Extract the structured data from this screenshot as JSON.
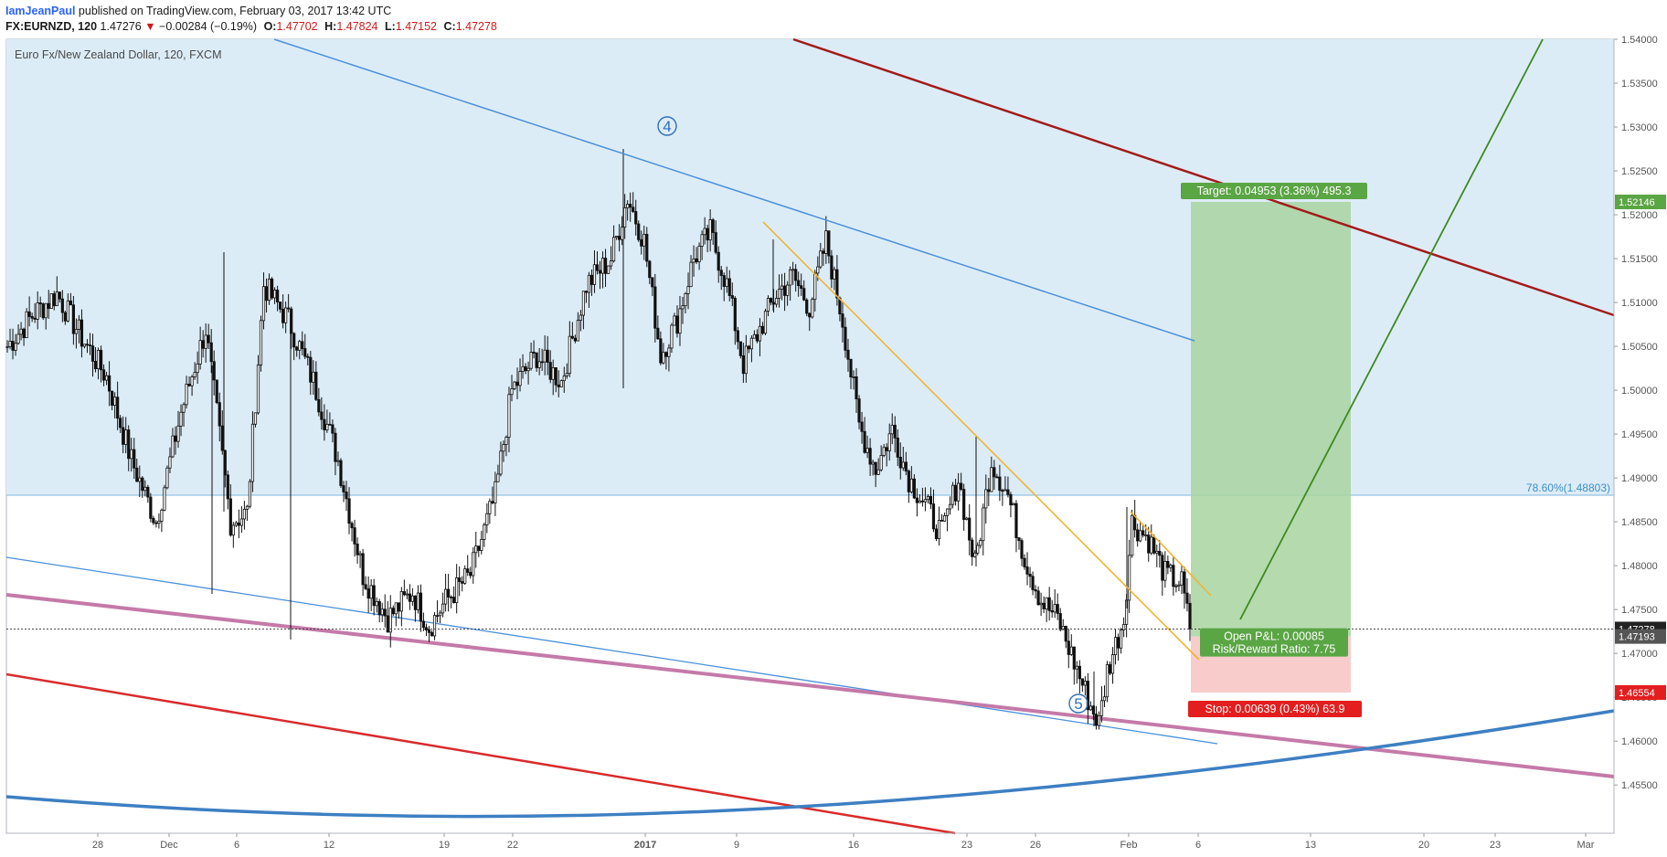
{
  "header": {
    "author": "IamJeanPaul",
    "published_text": " published on TradingView.com, February 03, 2017 13:42 UTC",
    "symbol": "FX:EURNZD, 120",
    "last": "1.47276",
    "change_arrow": "▼",
    "change": "−0.00284 (−0.19%)",
    "o_label": "O:",
    "o_value": "1.47702",
    "h_label": "H:",
    "h_value": "1.47824",
    "l_label": "L:",
    "l_value": "1.47152",
    "c_label": "C:",
    "c_value": "1.47278"
  },
  "chart_data": {
    "type": "candlestick",
    "title": "Euro Fx/New Zealand Dollar, 120, FXCM",
    "ylim": [
      1.4495,
      1.54
    ],
    "x_ticks": [
      "28",
      "Dec",
      "6",
      "12",
      "19",
      "22",
      "2017",
      "9",
      "16",
      "23",
      "26",
      "Feb",
      "6",
      "13",
      "20",
      "23",
      "Mar"
    ],
    "y_ticks": [
      "1.54000",
      "1.53500",
      "1.53000",
      "1.52500",
      "1.52000",
      "1.51500",
      "1.51000",
      "1.50500",
      "1.50000",
      "1.49500",
      "1.49000",
      "1.48500",
      "1.48000",
      "1.47500",
      "1.47000",
      "1.46500",
      "1.46000",
      "1.45500"
    ],
    "price_series": [
      [
        0,
        1.505
      ],
      [
        3,
        1.5085
      ],
      [
        6,
        1.511
      ],
      [
        9,
        1.506
      ],
      [
        12,
        1.5015
      ],
      [
        15,
        1.492
      ],
      [
        18,
        1.485
      ],
      [
        21,
        1.4975
      ],
      [
        24,
        1.507
      ],
      [
        27,
        1.485
      ],
      [
        29,
        1.486
      ],
      [
        31,
        1.512
      ],
      [
        34,
        1.508
      ],
      [
        37,
        1.501
      ],
      [
        40,
        1.492
      ],
      [
        43,
        1.479
      ],
      [
        46,
        1.474
      ],
      [
        49,
        1.477
      ],
      [
        51,
        1.473
      ],
      [
        53,
        1.476
      ],
      [
        56,
        1.479
      ],
      [
        59,
        1.488
      ],
      [
        61,
        1.5
      ],
      [
        64,
        1.504
      ],
      [
        67,
        1.501
      ],
      [
        70,
        1.512
      ],
      [
        73,
        1.515
      ],
      [
        75,
        1.522
      ],
      [
        77,
        1.517
      ],
      [
        79,
        1.504
      ],
      [
        81,
        1.508
      ],
      [
        83,
        1.515
      ],
      [
        85,
        1.518
      ],
      [
        87,
        1.512
      ],
      [
        89,
        1.503
      ],
      [
        91,
        1.507
      ],
      [
        93,
        1.511
      ],
      [
        95,
        1.513
      ],
      [
        97,
        1.5095
      ],
      [
        99,
        1.517
      ],
      [
        101,
        1.508
      ],
      [
        103,
        1.496
      ],
      [
        105,
        1.491
      ],
      [
        107,
        1.4955
      ],
      [
        109,
        1.49
      ],
      [
        111,
        1.487
      ],
      [
        113,
        1.4835
      ],
      [
        115,
        1.49
      ],
      [
        117,
        1.48
      ],
      [
        119,
        1.492
      ],
      [
        121,
        1.488
      ],
      [
        123,
        1.481
      ],
      [
        125,
        1.476
      ],
      [
        127,
        1.474
      ],
      [
        129,
        1.469
      ],
      [
        131,
        1.464
      ],
      [
        132,
        1.462
      ],
      [
        133,
        1.468
      ],
      [
        135,
        1.474
      ],
      [
        136,
        1.485
      ],
      [
        138,
        1.483
      ],
      [
        140,
        1.479
      ],
      [
        142,
        1.478
      ],
      [
        143,
        1.4728
      ]
    ],
    "price_x_range": [
      0,
      143
    ],
    "current_price": "1.47278",
    "current_price_2": "1.47193",
    "target_price": "1.52146",
    "stop_price": "1.46554",
    "fib_level_label": "78.60%(1.48803)",
    "fib_level": 1.48803,
    "wave_labels": [
      "4",
      "5"
    ],
    "position": {
      "entry": 1.47193,
      "target": 1.52146,
      "stop": 1.46554,
      "target_label": "Target: 0.04953 (3.36%) 495.3",
      "stop_label": "Stop: 0.00639 (0.43%) 63.9",
      "pnl_label": "Open P&L: 0.00085",
      "rr_label": "Risk/Reward Ratio: 7.75"
    },
    "colors": {
      "zone_fill": "#dcecf7",
      "blue_line": "#4a90d9",
      "dark_red_line": "#a31b1b",
      "red_line": "#d92b2b",
      "pink_line": "#c47aa8",
      "orange_line": "#f2b430",
      "green_line": "#3d8a1e",
      "curve": "#3d7fc2",
      "target_fill": "#a8d3a0",
      "stop_fill": "#f8c6c6",
      "target_tag": "#5aa544",
      "stop_tag": "#e31e1e",
      "candle": "#111111"
    }
  }
}
